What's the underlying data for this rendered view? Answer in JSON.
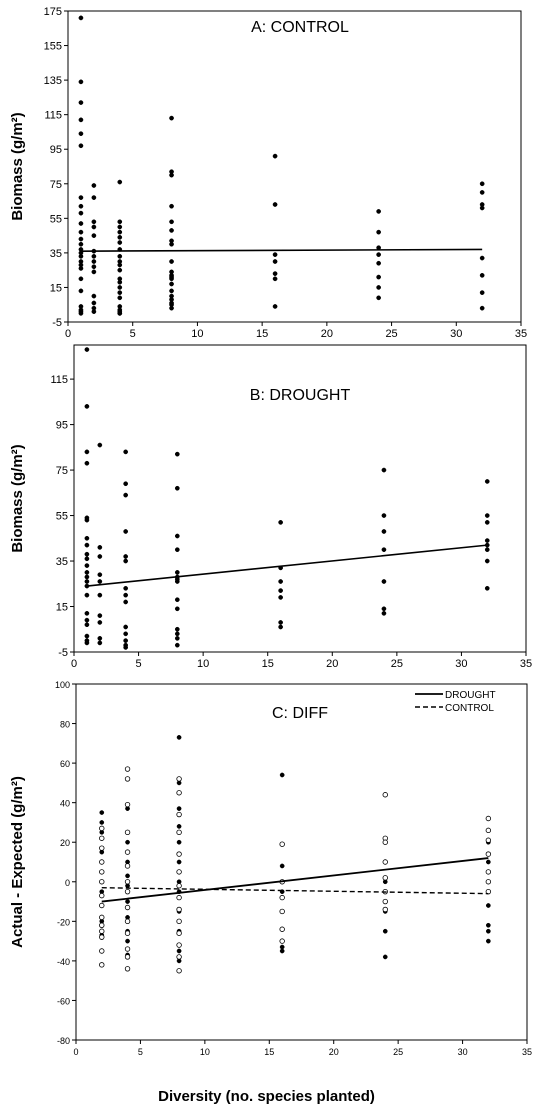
{
  "figure": {
    "xlabel": "Diversity (no. species planted)"
  },
  "chart_data": [
    {
      "type": "scatter",
      "title": "A: CONTROL",
      "xlabel": "",
      "ylabel": "Biomass (g/m²)",
      "xlim": [
        0,
        35
      ],
      "ylim": [
        -5,
        175
      ],
      "xticks": [
        0,
        5,
        10,
        15,
        20,
        25,
        30,
        35
      ],
      "yticks": [
        -5,
        15,
        35,
        55,
        75,
        95,
        115,
        135,
        155,
        175
      ],
      "series": [
        {
          "style": "filled",
          "x": [
            1,
            1,
            1,
            1,
            1,
            1,
            1,
            1,
            1,
            1,
            1,
            1,
            1,
            1,
            1,
            1,
            1,
            1,
            1,
            1,
            1,
            1,
            1,
            1,
            1,
            2,
            2,
            2,
            2,
            2,
            2,
            2,
            2,
            2,
            2,
            2,
            2,
            2,
            2,
            4,
            4,
            4,
            4,
            4,
            4,
            4,
            4,
            4,
            4,
            4,
            4,
            4,
            4,
            4,
            4,
            4,
            4,
            4,
            4,
            4,
            8,
            8,
            8,
            8,
            8,
            8,
            8,
            8,
            8,
            8,
            8,
            8,
            8,
            8,
            8,
            8,
            8,
            8,
            8,
            8,
            16,
            16,
            16,
            16,
            16,
            16,
            16,
            24,
            24,
            24,
            24,
            24,
            24,
            24,
            24,
            32,
            32,
            32,
            32,
            32,
            32,
            32,
            32
          ],
          "y": [
            171,
            134,
            122,
            112,
            104,
            97,
            67,
            62,
            58,
            52,
            47,
            43,
            40,
            37,
            35,
            33,
            30,
            28,
            26,
            20,
            13,
            4,
            2,
            1,
            0,
            74,
            67,
            53,
            50,
            45,
            36,
            33,
            30,
            27,
            24,
            10,
            6,
            3,
            1,
            76,
            53,
            50,
            47,
            44,
            41,
            37,
            33,
            30,
            28,
            25,
            20,
            18,
            15,
            12,
            9,
            4,
            2,
            1,
            0,
            0,
            113,
            82,
            80,
            62,
            53,
            48,
            42,
            40,
            30,
            24,
            22,
            21,
            20,
            17,
            13,
            10,
            8,
            6,
            5,
            3,
            91,
            63,
            34,
            30,
            23,
            20,
            4,
            59,
            47,
            38,
            34,
            29,
            21,
            15,
            9,
            75,
            70,
            63,
            61,
            32,
            22,
            12,
            3
          ]
        }
      ],
      "fit_line": {
        "x": [
          1,
          32
        ],
        "y": [
          36,
          37
        ]
      }
    },
    {
      "type": "scatter",
      "title": "B: DROUGHT",
      "xlabel": "",
      "ylabel": "Biomass (g/m²)",
      "xlim": [
        0,
        35
      ],
      "ylim": [
        -5,
        130
      ],
      "xticks": [
        0,
        5,
        10,
        15,
        20,
        25,
        30,
        35
      ],
      "yticks": [
        -5,
        15,
        35,
        55,
        75,
        95,
        115
      ],
      "series": [
        {
          "style": "filled",
          "x": [
            1,
            1,
            1,
            1,
            1,
            1,
            1,
            1,
            1,
            1,
            1,
            1,
            1,
            1,
            1,
            1,
            1,
            1,
            1,
            1,
            1,
            1,
            2,
            2,
            2,
            2,
            2,
            2,
            2,
            2,
            2,
            2,
            4,
            4,
            4,
            4,
            4,
            4,
            4,
            4,
            4,
            4,
            4,
            4,
            4,
            4,
            8,
            8,
            8,
            8,
            8,
            8,
            8,
            8,
            8,
            8,
            8,
            8,
            8,
            8,
            16,
            16,
            16,
            16,
            16,
            16,
            16,
            24,
            24,
            24,
            24,
            24,
            24,
            24,
            32,
            32,
            32,
            32,
            32,
            32,
            32,
            32
          ],
          "y": [
            128,
            103,
            83,
            78,
            54,
            53,
            45,
            42,
            38,
            36,
            33,
            30,
            28,
            26,
            24,
            20,
            12,
            9,
            7,
            2,
            0,
            -1,
            86,
            41,
            37,
            29,
            26,
            20,
            11,
            8,
            1,
            -1,
            83,
            69,
            64,
            48,
            37,
            35,
            23,
            20,
            17,
            6,
            3,
            0,
            -2,
            -3,
            82,
            67,
            46,
            40,
            30,
            28,
            27,
            26,
            18,
            14,
            5,
            3,
            1,
            -2,
            52,
            32,
            26,
            22,
            19,
            8,
            6,
            75,
            55,
            48,
            40,
            26,
            14,
            12,
            70,
            55,
            52,
            44,
            42,
            40,
            35,
            23
          ]
        }
      ],
      "fit_line": {
        "x": [
          1,
          32
        ],
        "y": [
          24,
          42
        ]
      }
    },
    {
      "type": "scatter",
      "title": "C: DIFF",
      "xlabel": "",
      "ylabel": "Actual - Expected (g/m²)",
      "xlim": [
        0,
        35
      ],
      "ylim": [
        -80,
        100
      ],
      "xticks": [
        0,
        5,
        10,
        15,
        20,
        25,
        30,
        35
      ],
      "yticks": [
        -80,
        -60,
        -40,
        -20,
        0,
        20,
        40,
        60,
        80,
        100
      ],
      "legend": {
        "position": "top-right",
        "entries": [
          "DROUGHT",
          "CONTROL"
        ]
      },
      "series": [
        {
          "name": "DROUGHT",
          "style": "filled",
          "line": "solid",
          "x": [
            2,
            2,
            2,
            2,
            2,
            2,
            2,
            2,
            2,
            4,
            4,
            4,
            4,
            4,
            4,
            4,
            4,
            4,
            4,
            8,
            8,
            8,
            8,
            8,
            8,
            8,
            8,
            8,
            8,
            8,
            8,
            16,
            16,
            16,
            16,
            16,
            16,
            24,
            24,
            24,
            24,
            24,
            24,
            32,
            32,
            32,
            32,
            32,
            32
          ],
          "y": [
            35,
            30,
            25,
            15,
            5,
            -5,
            -12,
            -20,
            -27,
            37,
            20,
            10,
            3,
            -2,
            -10,
            -18,
            -25,
            -30,
            -37,
            73,
            50,
            37,
            28,
            20,
            10,
            0,
            -5,
            -15,
            -25,
            -35,
            -40,
            54,
            8,
            0,
            -5,
            -33,
            -35,
            10,
            0,
            -5,
            -15,
            -25,
            -38,
            20,
            10,
            -12,
            -22,
            -25,
            -30
          ],
          "fit": {
            "x": [
              2,
              32
            ],
            "y": [
              -10,
              12
            ]
          }
        },
        {
          "name": "CONTROL",
          "style": "open",
          "line": "dashed",
          "x": [
            2,
            2,
            2,
            2,
            2,
            2,
            2,
            2,
            2,
            2,
            2,
            2,
            2,
            2,
            4,
            4,
            4,
            4,
            4,
            4,
            4,
            4,
            4,
            4,
            4,
            4,
            4,
            4,
            8,
            8,
            8,
            8,
            8,
            8,
            8,
            8,
            8,
            8,
            8,
            8,
            8,
            8,
            16,
            16,
            16,
            16,
            16,
            16,
            24,
            24,
            24,
            24,
            24,
            24,
            24,
            24,
            32,
            32,
            32,
            32,
            32,
            32,
            32
          ],
          "y": [
            27,
            22,
            17,
            10,
            5,
            0,
            -7,
            -12,
            -18,
            -22,
            -25,
            -28,
            -35,
            -42,
            57,
            52,
            39,
            25,
            15,
            8,
            0,
            -5,
            -13,
            -20,
            -26,
            -34,
            -38,
            -44,
            52,
            45,
            34,
            25,
            14,
            5,
            -2,
            -8,
            -14,
            -20,
            -26,
            -32,
            -38,
            -45,
            19,
            0,
            -8,
            -15,
            -24,
            -30,
            44,
            22,
            20,
            10,
            2,
            -5,
            -10,
            -14,
            32,
            26,
            21,
            14,
            5,
            0,
            -5
          ],
          "fit": {
            "x": [
              2,
              32
            ],
            "y": [
              -3,
              -6
            ]
          }
        }
      ]
    }
  ]
}
